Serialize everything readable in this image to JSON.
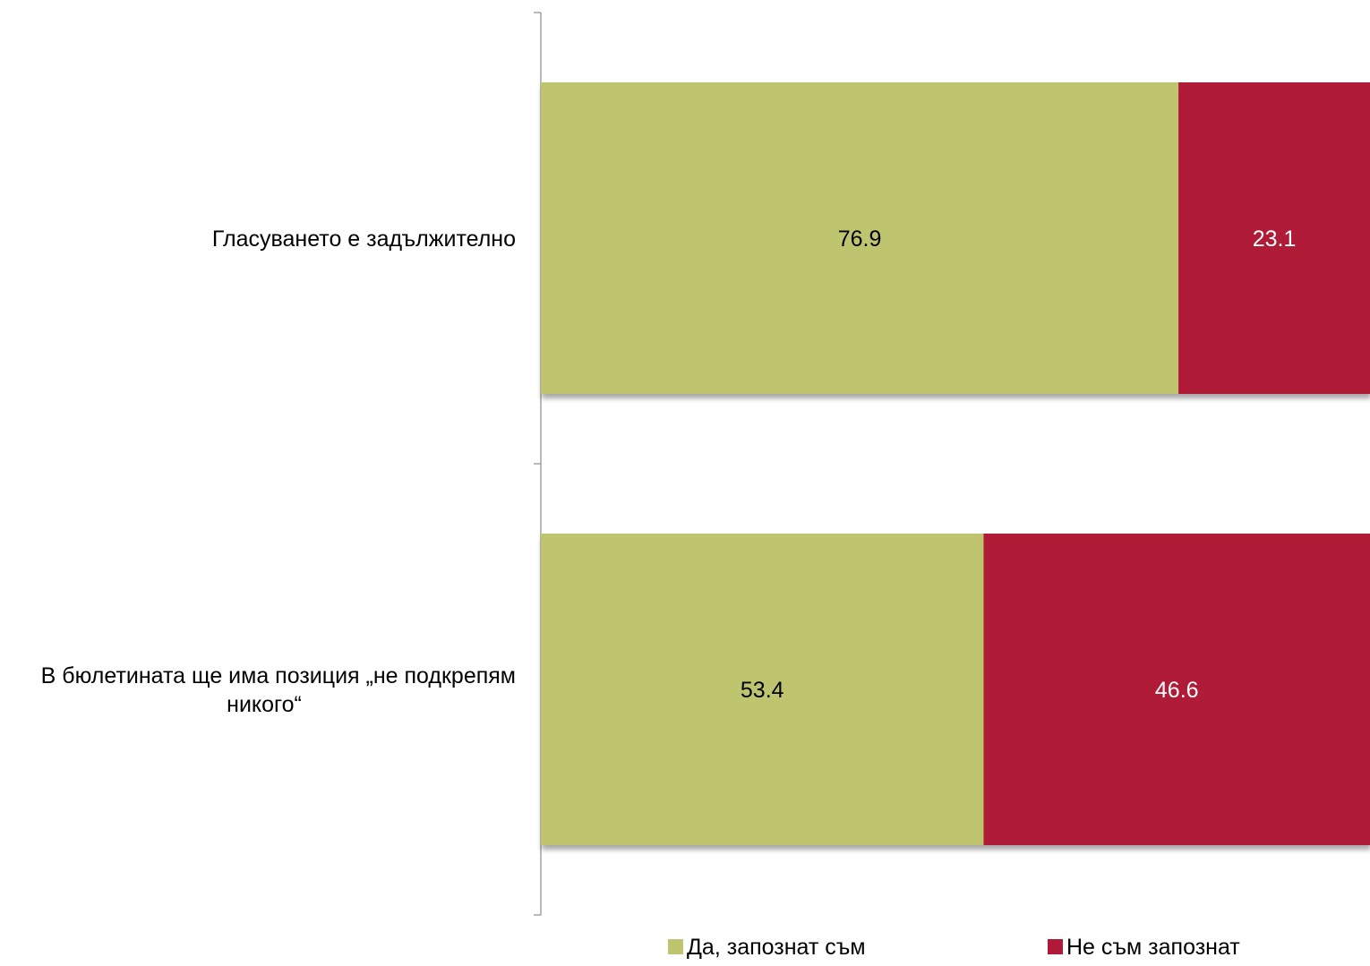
{
  "chart_data": {
    "type": "bar",
    "orientation": "horizontal",
    "stacked": true,
    "categories": [
      [
        "Гласуването е задължително"
      ],
      [
        "В бюлетината ще има позиция „не подкрепям",
        "никого“"
      ]
    ],
    "series": [
      {
        "name": "Да, запознат съм",
        "color": "#BFC46E",
        "label_color": "#000000",
        "values": [
          76.9,
          53.4
        ]
      },
      {
        "name": "Не съм запознат",
        "color": "#B01A38",
        "label_color": "#ffffff",
        "values": [
          23.1,
          46.6
        ]
      }
    ],
    "xlim": [
      0,
      100
    ],
    "grid": false,
    "x_axis_visible": false,
    "legend_position": "bottom"
  }
}
